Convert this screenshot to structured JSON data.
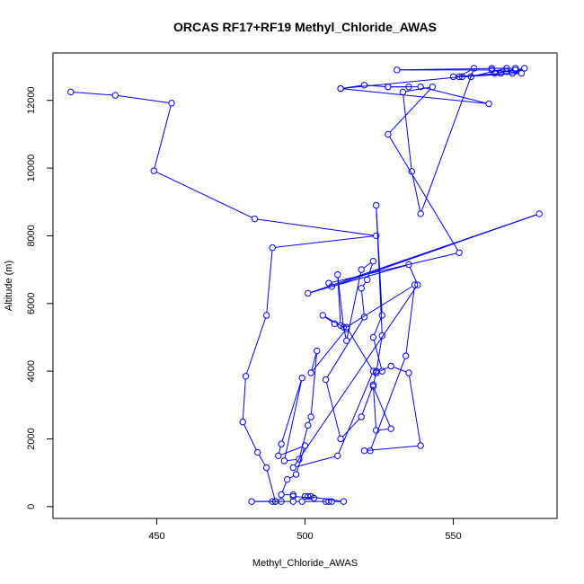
{
  "chart_data": {
    "type": "line",
    "title": "ORCAS RF17+RF19 Methyl_Chloride_AWAS",
    "xlabel": "Methyl_Chloride_AWAS",
    "ylabel": "Altitude (m)",
    "xlim": [
      415,
      585
    ],
    "ylim": [
      -350,
      13400
    ],
    "xticks": [
      450,
      500,
      550
    ],
    "yticks": [
      0,
      2000,
      4000,
      6000,
      8000,
      10000,
      12000
    ],
    "grid": false,
    "legend": "none",
    "markers": "open-circle",
    "color": "#0000ff",
    "series": [
      {
        "points": [
          [
            421,
            12250
          ],
          [
            436,
            12150
          ],
          [
            455,
            11920
          ],
          [
            449,
            9920
          ],
          [
            483,
            8500
          ],
          [
            524,
            8000
          ],
          [
            489,
            7650
          ],
          [
            487,
            5650
          ],
          [
            480,
            3850
          ],
          [
            479,
            2500
          ],
          [
            484,
            1600
          ],
          [
            487,
            1150
          ],
          [
            490,
            150
          ],
          [
            482,
            150
          ],
          [
            492,
            150
          ],
          [
            490,
            150
          ],
          [
            489,
            150
          ],
          [
            496,
            150
          ],
          [
            499,
            150
          ],
          [
            508,
            150
          ],
          [
            507,
            150
          ],
          [
            509,
            150
          ],
          [
            513,
            150
          ],
          [
            501,
            300
          ],
          [
            502,
            300
          ],
          [
            500,
            300
          ],
          [
            503,
            250
          ],
          [
            496,
            300
          ],
          [
            496,
            350
          ],
          [
            492,
            350
          ],
          [
            494,
            800
          ],
          [
            497,
            950
          ],
          [
            500,
            1800
          ],
          [
            491,
            1500
          ],
          [
            492,
            1850
          ],
          [
            499,
            3800
          ],
          [
            493,
            1350
          ],
          [
            498,
            1400
          ],
          [
            501,
            2400
          ],
          [
            502,
            2650
          ],
          [
            504,
            4600
          ],
          [
            502,
            3950
          ],
          [
            514,
            5250
          ],
          [
            506,
            5650
          ],
          [
            510,
            5400
          ],
          [
            512,
            5350
          ],
          [
            511,
            6850
          ],
          [
            513,
            5300
          ],
          [
            514,
            4900
          ],
          [
            519,
            7000
          ],
          [
            523,
            7250
          ],
          [
            521,
            6700
          ],
          [
            519,
            6450
          ],
          [
            520,
            5600
          ],
          [
            507,
            3750
          ],
          [
            512,
            2000
          ],
          [
            519,
            2650
          ],
          [
            523,
            3600
          ],
          [
            524,
            2250
          ],
          [
            529,
            2300
          ],
          [
            523,
            3550
          ],
          [
            524,
            4000
          ],
          [
            526,
            4000
          ],
          [
            523,
            5000
          ],
          [
            526,
            5650
          ],
          [
            524,
            8900
          ],
          [
            526,
            5050
          ],
          [
            524,
            3950
          ],
          [
            529,
            4150
          ],
          [
            535,
            3950
          ],
          [
            539,
            1800
          ],
          [
            520,
            1650
          ],
          [
            522,
            1650
          ],
          [
            534,
            4450
          ],
          [
            537,
            6550
          ],
          [
            514,
            5300
          ],
          [
            523,
            4000
          ],
          [
            511,
            1500
          ],
          [
            496,
            1150
          ],
          [
            538,
            6550
          ],
          [
            535,
            7150
          ],
          [
            501,
            6300
          ],
          [
            579,
            8650
          ],
          [
            509,
            6500
          ],
          [
            508,
            6600
          ],
          [
            552,
            7500
          ],
          [
            528,
            11000
          ],
          [
            543,
            12400
          ],
          [
            533,
            12250
          ],
          [
            536,
            9900
          ],
          [
            539,
            8650
          ],
          [
            557,
            12950
          ],
          [
            552,
            12700
          ],
          [
            566,
            12800
          ],
          [
            563,
            12950
          ],
          [
            571,
            12950
          ],
          [
            568,
            12850
          ],
          [
            564,
            12800
          ],
          [
            571,
            12900
          ],
          [
            574,
            12950
          ],
          [
            570,
            12800
          ],
          [
            550,
            12700
          ],
          [
            556,
            12700
          ],
          [
            568,
            12950
          ],
          [
            531,
            12900
          ],
          [
            563,
            12900
          ],
          [
            573,
            12800
          ],
          [
            553,
            12700
          ],
          [
            512,
            12350
          ],
          [
            520,
            12450
          ],
          [
            528,
            12400
          ],
          [
            535,
            12400
          ],
          [
            528,
            12400
          ],
          [
            539,
            12400
          ],
          [
            562,
            11900
          ],
          [
            512,
            12350
          ]
        ]
      }
    ]
  }
}
